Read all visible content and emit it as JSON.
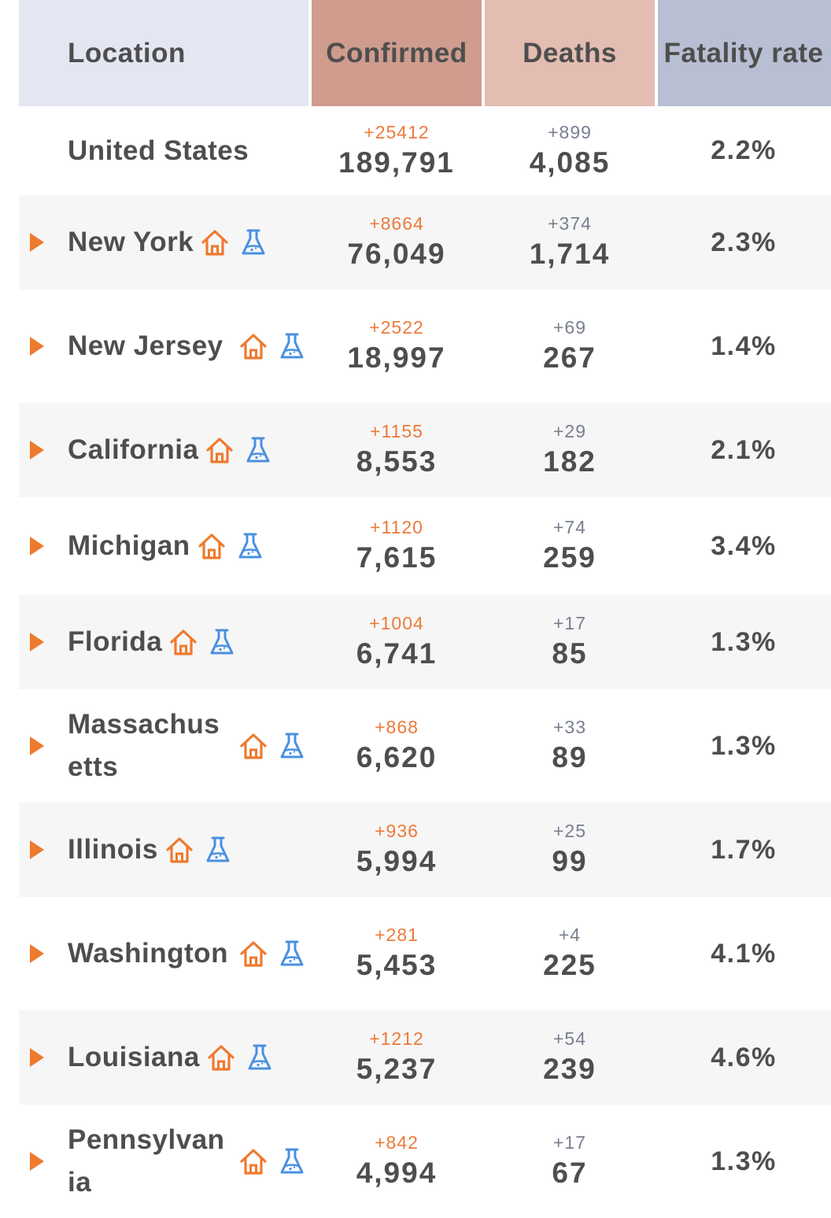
{
  "header": {
    "location": "Location",
    "confirmed": "Confirmed",
    "deaths": "Deaths",
    "fatality_rate": "Fatality rate"
  },
  "colors": {
    "location_header_bg": "#e4e6f2",
    "confirmed_header_bg": "#cf9c8e",
    "deaths_header_bg": "#e3bcb2",
    "fatality_header_bg": "#b8bfd2",
    "accent_orange": "#ee7a2e",
    "flask_blue": "#4a90e2"
  },
  "icons": {
    "expand": "caret-right-icon",
    "stay_home": "house-icon",
    "testing": "flask-icon"
  },
  "rows": [
    {
      "location": "United States",
      "conf_delta": "+25412",
      "confirmed": "189,791",
      "death_delta": "+899",
      "deaths": "4,085",
      "rate": "2.2%"
    },
    {
      "location": "New York",
      "conf_delta": "+8664",
      "confirmed": "76,049",
      "death_delta": "+374",
      "deaths": "1,714",
      "rate": "2.3%"
    },
    {
      "location": "New Jersey",
      "conf_delta": "+2522",
      "confirmed": "18,997",
      "death_delta": "+69",
      "deaths": "267",
      "rate": "1.4%"
    },
    {
      "location": "California",
      "conf_delta": "+1155",
      "confirmed": "8,553",
      "death_delta": "+29",
      "deaths": "182",
      "rate": "2.1%"
    },
    {
      "location": "Michigan",
      "conf_delta": "+1120",
      "confirmed": "7,615",
      "death_delta": "+74",
      "deaths": "259",
      "rate": "3.4%"
    },
    {
      "location": "Florida",
      "conf_delta": "+1004",
      "confirmed": "6,741",
      "death_delta": "+17",
      "deaths": "85",
      "rate": "1.3%"
    },
    {
      "location": "Massachusetts",
      "conf_delta": "+868",
      "confirmed": "6,620",
      "death_delta": "+33",
      "deaths": "89",
      "rate": "1.3%"
    },
    {
      "location": "Illinois",
      "conf_delta": "+936",
      "confirmed": "5,994",
      "death_delta": "+25",
      "deaths": "99",
      "rate": "1.7%"
    },
    {
      "location": "Washington",
      "conf_delta": "+281",
      "confirmed": "5,453",
      "death_delta": "+4",
      "deaths": "225",
      "rate": "4.1%"
    },
    {
      "location": "Louisiana",
      "conf_delta": "+1212",
      "confirmed": "5,237",
      "death_delta": "+54",
      "deaths": "239",
      "rate": "4.6%"
    },
    {
      "location": "Pennsylvania",
      "conf_delta": "+842",
      "confirmed": "4,994",
      "death_delta": "+17",
      "deaths": "67",
      "rate": "1.3%"
    }
  ]
}
